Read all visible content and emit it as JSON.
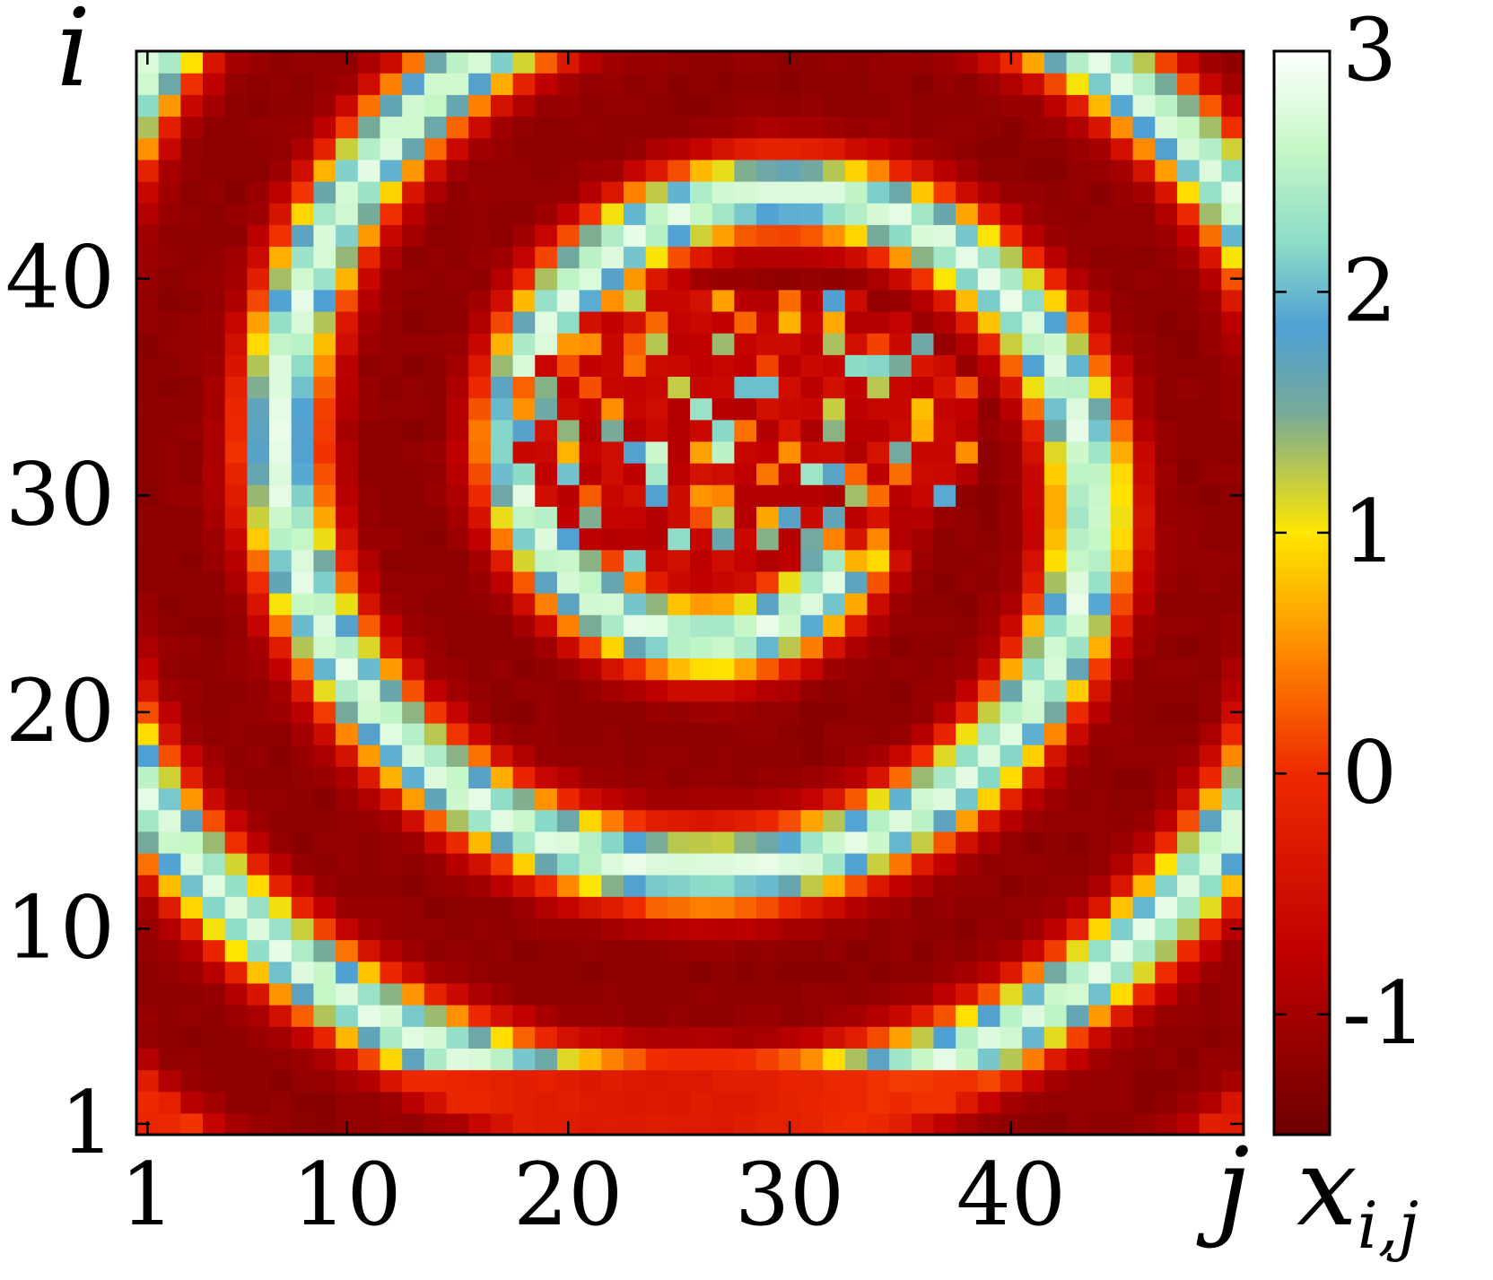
{
  "chart_data": {
    "type": "heatmap",
    "title": "",
    "grid_size": 50,
    "x": {
      "label": "j",
      "range": [
        1,
        50
      ],
      "ticks": [
        1,
        10,
        20,
        30,
        40
      ]
    },
    "y": {
      "label": "i",
      "range": [
        1,
        50
      ],
      "ticks": [
        1,
        10,
        20,
        30,
        40
      ]
    },
    "colorbar": {
      "label": "x_{i,j}",
      "label_text": "x",
      "label_sub": "i,j",
      "range": [
        -1.5,
        3
      ],
      "ticks": [
        -1,
        0,
        1,
        2,
        3
      ],
      "tick_labels": [
        "-1",
        "0",
        "1",
        "2",
        "3"
      ],
      "colormap": [
        [
          -1.5,
          "#6e0000"
        ],
        [
          -0.75,
          "#c00000"
        ],
        [
          0,
          "#ee2a00"
        ],
        [
          0.5,
          "#ff8800"
        ],
        [
          1,
          "#ffe600"
        ],
        [
          1.5,
          "#77aa99"
        ],
        [
          1.85,
          "#4fa0d4"
        ],
        [
          2.2,
          "#8cdcc8"
        ],
        [
          2.6,
          "#c6f7c6"
        ],
        [
          3,
          "#ffffff"
        ]
      ]
    },
    "pattern": "spiral wave: concentric bands of high values (~2-3) winding around a disordered core near i≈30-40, j≈18-38; low values (~-1) in the red regions between bands and at the lower-left corner",
    "values": []
  }
}
